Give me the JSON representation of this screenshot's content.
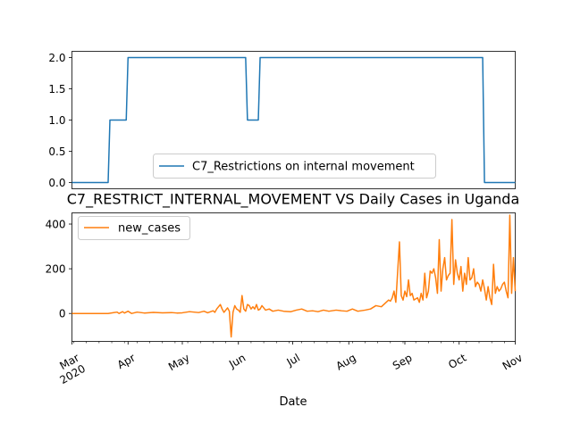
{
  "chart_data": [
    {
      "type": "line",
      "title": "",
      "xlabel": "",
      "ylabel": "",
      "xlim": [
        "2020-03-01",
        "2020-11-01"
      ],
      "ylim": [
        -0.1,
        2.1
      ],
      "yticks": [
        0.0,
        0.5,
        1.0,
        1.5,
        2.0
      ],
      "ytick_labels": [
        "0.0",
        "0.5",
        "1.0",
        "1.5",
        "2.0"
      ],
      "legend": {
        "placement": "lower-center"
      },
      "series": [
        {
          "name": "C7_Restrictions on internal movement",
          "color": "#1f77b4",
          "x": [
            "2020-03-01",
            "2020-03-21",
            "2020-03-22",
            "2020-03-31",
            "2020-04-01",
            "2020-06-05",
            "2020-06-06",
            "2020-06-12",
            "2020-06-13",
            "2020-10-14",
            "2020-10-15",
            "2020-11-01"
          ],
          "y": [
            0,
            0,
            1,
            1,
            2,
            2,
            1,
            1,
            2,
            2,
            0,
            0
          ]
        }
      ]
    },
    {
      "type": "line",
      "title": "C7_RESTRICT_INTERNAL_MOVEMENT VS Daily Cases in Uganda",
      "xlabel": "Date",
      "ylabel": "",
      "xlim": [
        "2020-03-01",
        "2020-11-01"
      ],
      "ylim": [
        -125,
        450
      ],
      "yticks": [
        0,
        200,
        400
      ],
      "ytick_labels": [
        "0",
        "200",
        "400"
      ],
      "xtick_labels": [
        "Mar\n2020",
        "Apr",
        "May",
        "Jun",
        "Jul",
        "Aug",
        "Sep",
        "Oct",
        "Nov"
      ],
      "legend": {
        "placement": "top-left"
      },
      "series": [
        {
          "name": "new_cases",
          "color": "#ff7f0e",
          "x": [
            "2020-03-01",
            "2020-03-21",
            "2020-03-26",
            "2020-03-27",
            "2020-03-29",
            "2020-03-30",
            "2020-04-01",
            "2020-04-03",
            "2020-04-06",
            "2020-04-10",
            "2020-04-15",
            "2020-04-20",
            "2020-04-25",
            "2020-04-28",
            "2020-05-01",
            "2020-05-05",
            "2020-05-10",
            "2020-05-13",
            "2020-05-15",
            "2020-05-18",
            "2020-05-19",
            "2020-05-20",
            "2020-05-22",
            "2020-05-23",
            "2020-05-24",
            "2020-05-26",
            "2020-05-27",
            "2020-05-28",
            "2020-05-29",
            "2020-05-30",
            "2020-05-31",
            "2020-06-01",
            "2020-06-02",
            "2020-06-03",
            "2020-06-04",
            "2020-06-05",
            "2020-06-06",
            "2020-06-07",
            "2020-06-08",
            "2020-06-09",
            "2020-06-10",
            "2020-06-11",
            "2020-06-12",
            "2020-06-13",
            "2020-06-14",
            "2020-06-16",
            "2020-06-18",
            "2020-06-20",
            "2020-06-23",
            "2020-06-26",
            "2020-06-30",
            "2020-07-03",
            "2020-07-06",
            "2020-07-09",
            "2020-07-12",
            "2020-07-15",
            "2020-07-18",
            "2020-07-21",
            "2020-07-25",
            "2020-07-28",
            "2020-07-31",
            "2020-08-03",
            "2020-08-06",
            "2020-08-10",
            "2020-08-13",
            "2020-08-16",
            "2020-08-19",
            "2020-08-21",
            "2020-08-23",
            "2020-08-24",
            "2020-08-25",
            "2020-08-26",
            "2020-08-27",
            "2020-08-29",
            "2020-08-30",
            "2020-08-31",
            "2020-09-01",
            "2020-09-02",
            "2020-09-03",
            "2020-09-04",
            "2020-09-05",
            "2020-09-06",
            "2020-09-08",
            "2020-09-09",
            "2020-09-10",
            "2020-09-11",
            "2020-09-12",
            "2020-09-13",
            "2020-09-14",
            "2020-09-15",
            "2020-09-16",
            "2020-09-17",
            "2020-09-18",
            "2020-09-19",
            "2020-09-20",
            "2020-09-21",
            "2020-09-22",
            "2020-09-23",
            "2020-09-24",
            "2020-09-25",
            "2020-09-26",
            "2020-09-27",
            "2020-09-28",
            "2020-09-29",
            "2020-09-30",
            "2020-10-01",
            "2020-10-02",
            "2020-10-03",
            "2020-10-04",
            "2020-10-05",
            "2020-10-06",
            "2020-10-07",
            "2020-10-08",
            "2020-10-09",
            "2020-10-10",
            "2020-10-11",
            "2020-10-12",
            "2020-10-13",
            "2020-10-14",
            "2020-10-15",
            "2020-10-16",
            "2020-10-17",
            "2020-10-18",
            "2020-10-19",
            "2020-10-20",
            "2020-10-21",
            "2020-10-22",
            "2020-10-23",
            "2020-10-24",
            "2020-10-25",
            "2020-10-26",
            "2020-10-27",
            "2020-10-28",
            "2020-10-29",
            "2020-10-30",
            "2020-10-31",
            "2020-11-01"
          ],
          "y": [
            0,
            0,
            6,
            0,
            8,
            2,
            10,
            0,
            6,
            2,
            5,
            3,
            4,
            2,
            3,
            8,
            4,
            10,
            3,
            12,
            5,
            20,
            40,
            20,
            5,
            25,
            10,
            -105,
            5,
            35,
            20,
            15,
            5,
            80,
            20,
            10,
            40,
            35,
            20,
            30,
            20,
            40,
            15,
            20,
            35,
            15,
            20,
            10,
            15,
            10,
            8,
            15,
            20,
            10,
            12,
            8,
            15,
            10,
            15,
            12,
            10,
            20,
            10,
            15,
            20,
            35,
            30,
            45,
            60,
            55,
            70,
            100,
            50,
            320,
            80,
            60,
            100,
            75,
            150,
            80,
            90,
            60,
            70,
            50,
            90,
            60,
            180,
            70,
            100,
            190,
            180,
            200,
            160,
            90,
            330,
            100,
            200,
            250,
            150,
            170,
            180,
            420,
            130,
            240,
            180,
            150,
            210,
            100,
            180,
            130,
            250,
            150,
            160,
            200,
            120,
            140,
            130,
            100,
            150,
            110,
            60,
            120,
            70,
            40,
            220,
            90,
            120,
            100,
            110,
            130,
            140,
            100,
            70,
            440,
            90,
            250,
            100
          ]
        }
      ]
    }
  ]
}
